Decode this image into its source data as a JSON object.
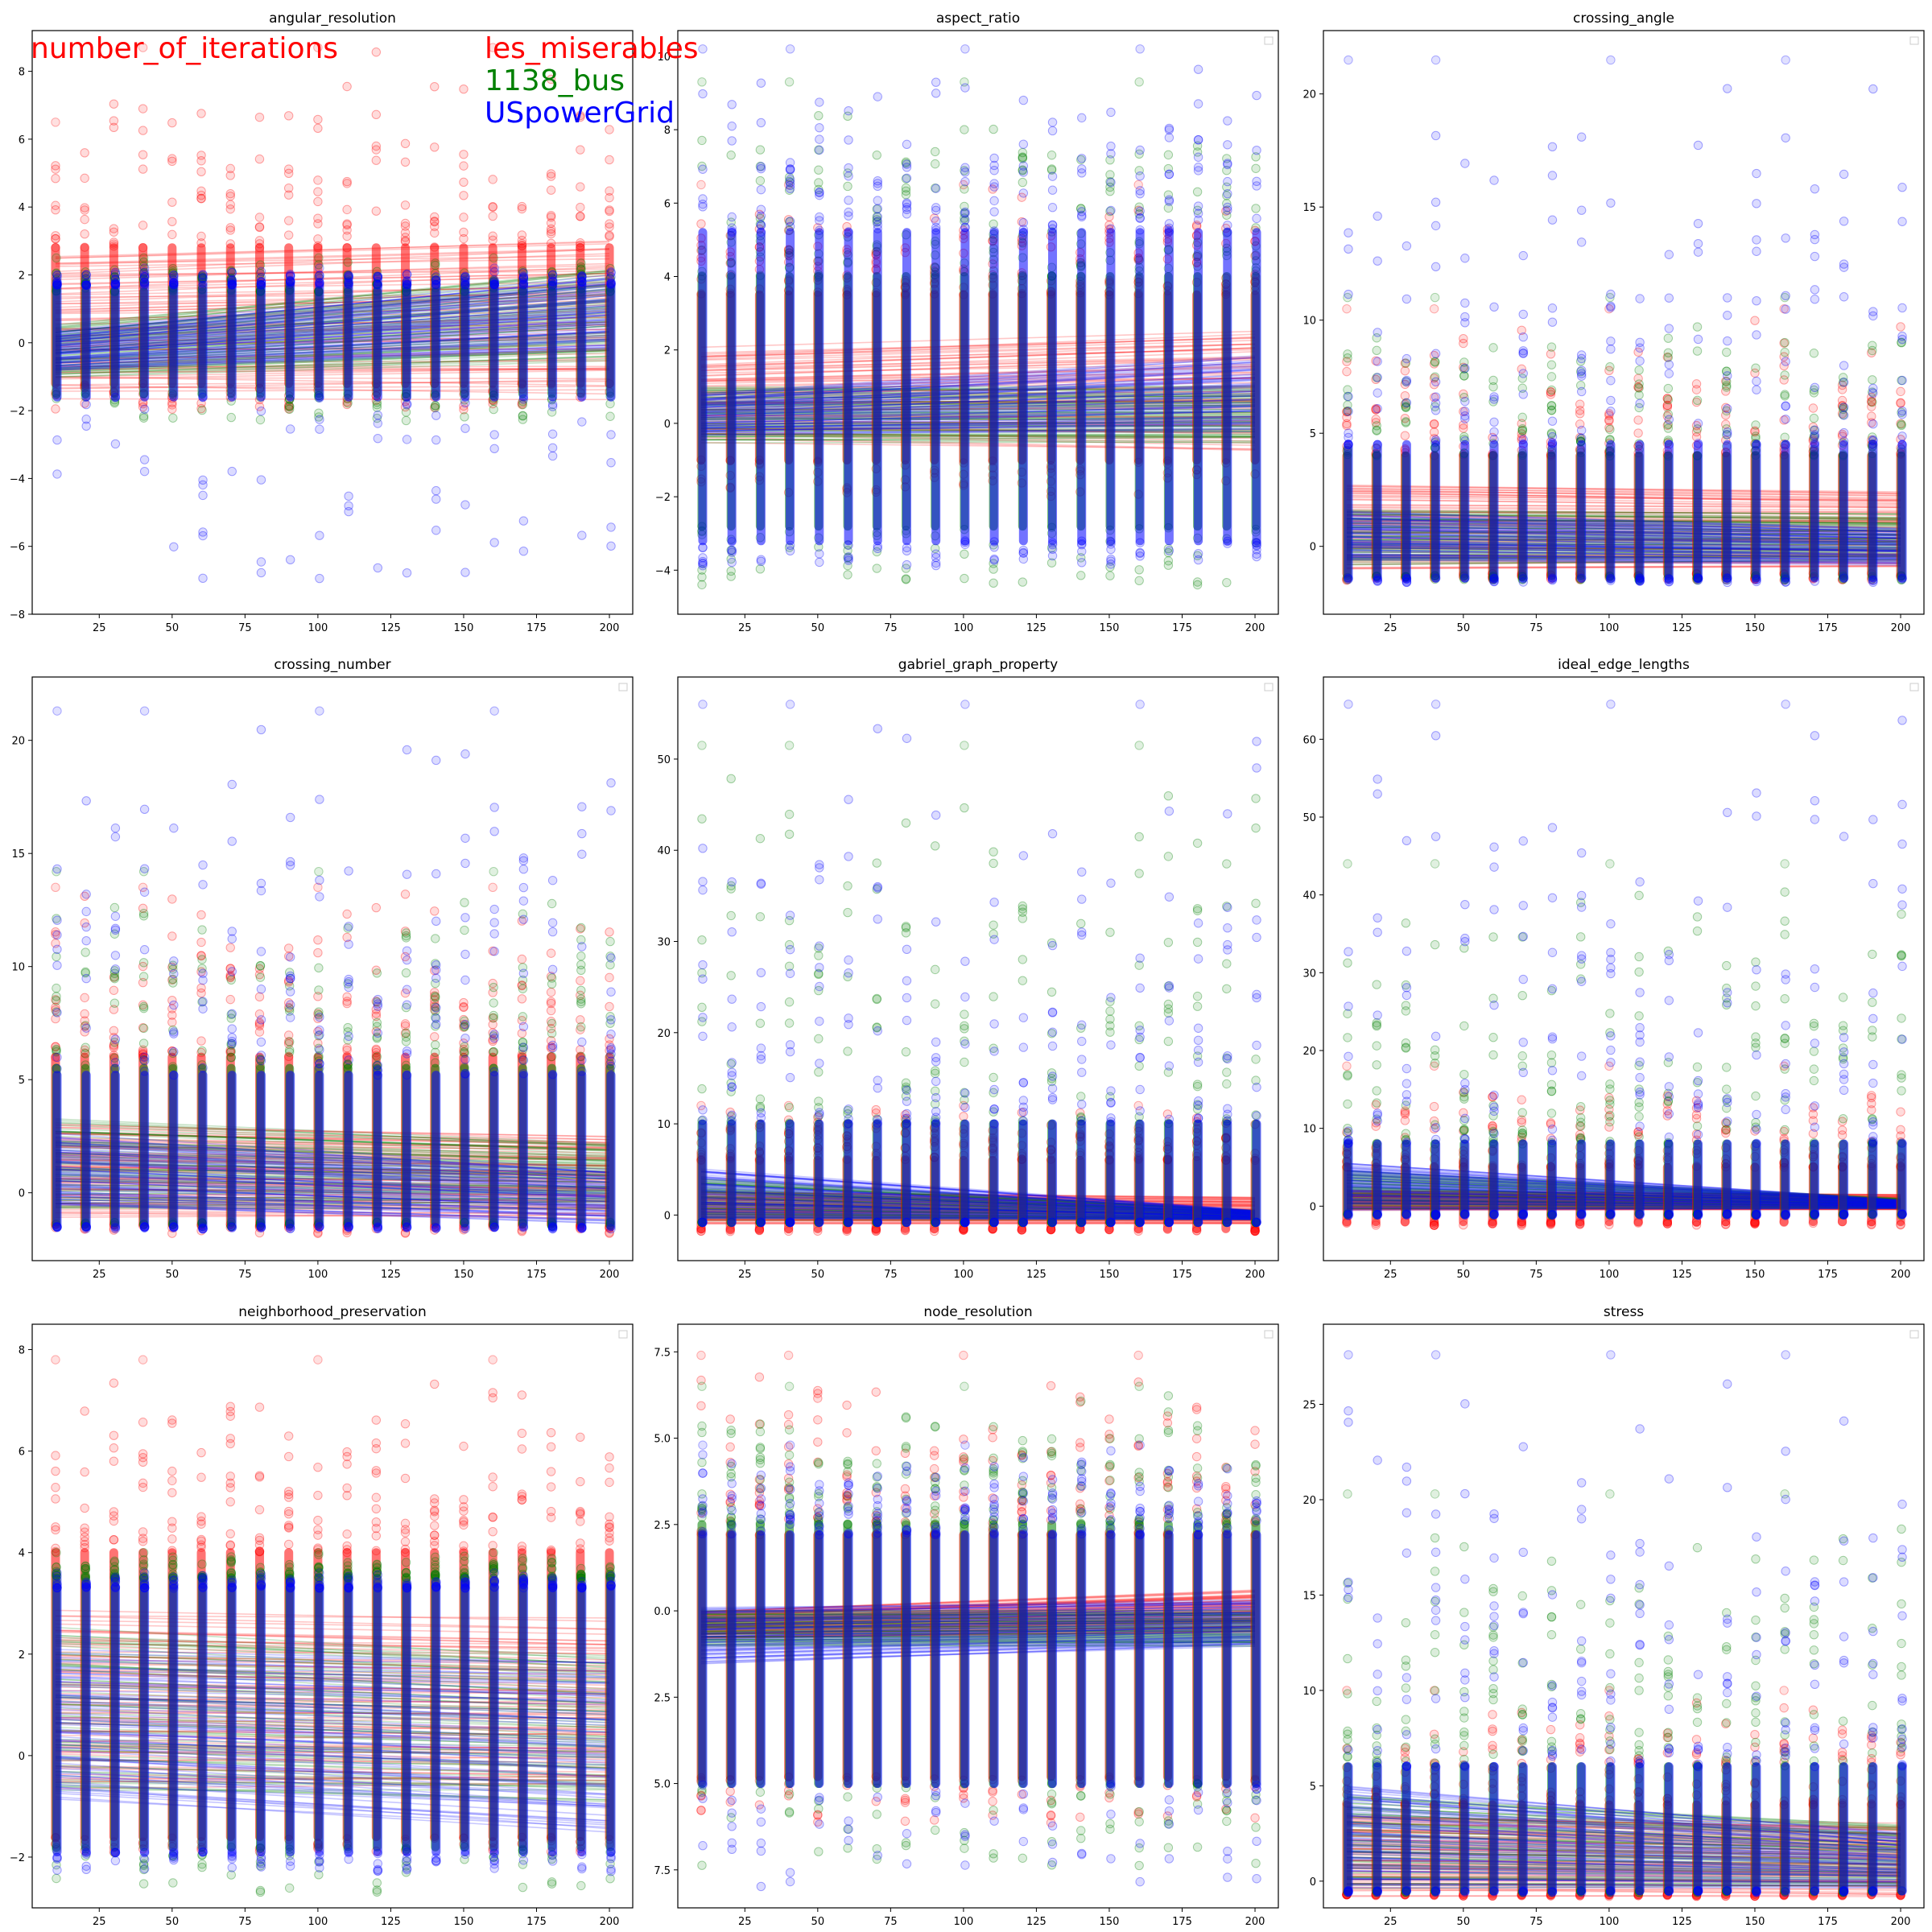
{
  "overlay": {
    "metric": "number_of_iterations",
    "datasets": [
      "les_miserables",
      "1138_bus",
      "USpowerGrid"
    ]
  },
  "colors": {
    "les_miserables": "#ff0000",
    "1138_bus": "#008000",
    "USpowerGrid": "#0000ff",
    "axis": "#000000",
    "background": "#ffffff"
  },
  "chart_data": [
    {
      "type": "scatter",
      "title": "angular_resolution",
      "legend": "none",
      "x": [
        10,
        20,
        30,
        40,
        50,
        60,
        70,
        80,
        90,
        100,
        110,
        120,
        130,
        140,
        150,
        160,
        170,
        180,
        190,
        200
      ],
      "xticks": [
        25,
        50,
        75,
        100,
        125,
        150,
        175,
        200
      ],
      "xlim": [
        2,
        208
      ],
      "yticks": [
        -8,
        -6,
        -4,
        -2,
        0,
        2,
        4,
        6,
        8
      ],
      "ylim": [
        -8,
        9.2
      ],
      "series": [
        {
          "name": "les_miserables",
          "band": [
            -1.2,
            2.8
          ],
          "max_at_x10": 6.5,
          "max": 8.7,
          "min": -2.0,
          "fit_start": [
            -1.5,
            2.5
          ],
          "fit_end": [
            -1.5,
            3.0
          ]
        },
        {
          "name": "1138_bus",
          "band": [
            -1.5,
            1.5
          ],
          "max_at_x10": 2.5,
          "max": 2.5,
          "min": -2.3,
          "fit_start": [
            -1.0,
            0.5
          ],
          "fit_end": [
            -0.5,
            2.2
          ]
        },
        {
          "name": "USpowerGrid",
          "band": [
            -1.6,
            1.7
          ],
          "max_at_x10": 2.0,
          "max": 2.2,
          "min": -7.2,
          "min_at_x10": -7.2,
          "fit_start": [
            -0.8,
            0.3
          ],
          "fit_end": [
            -0.2,
            2.0
          ]
        }
      ]
    },
    {
      "type": "scatter",
      "title": "aspect_ratio",
      "legend": "empty-top-right",
      "x": [
        10,
        20,
        30,
        40,
        50,
        60,
        70,
        80,
        90,
        100,
        110,
        120,
        130,
        140,
        150,
        160,
        170,
        180,
        190,
        200
      ],
      "xticks": [
        25,
        50,
        75,
        100,
        125,
        150,
        175,
        200
      ],
      "xlim": [
        2,
        208
      ],
      "yticks": [
        -4,
        -2,
        0,
        2,
        4,
        6,
        8,
        10
      ],
      "ylim": [
        -5.2,
        10.7
      ],
      "series": [
        {
          "name": "les_miserables",
          "band": [
            -1.0,
            3.5
          ],
          "max": 6.5,
          "min": -2.0,
          "fit_start": [
            -0.5,
            2.0
          ],
          "fit_end": [
            -0.7,
            2.5
          ]
        },
        {
          "name": "1138_bus",
          "band": [
            -2.8,
            4.0
          ],
          "max": 9.3,
          "min": -4.4,
          "fit_start": [
            -0.5,
            1.0
          ],
          "fit_end": [
            -0.5,
            1.0
          ]
        },
        {
          "name": "USpowerGrid",
          "band": [
            -3.2,
            5.2
          ],
          "max": 10.2,
          "min": -3.9,
          "fit_start": [
            -0.3,
            0.8
          ],
          "fit_end": [
            -0.2,
            1.8
          ]
        }
      ]
    },
    {
      "type": "scatter",
      "title": "crossing_angle",
      "legend": "empty-top-right",
      "x": [
        10,
        20,
        30,
        40,
        50,
        60,
        70,
        80,
        90,
        100,
        110,
        120,
        130,
        140,
        150,
        160,
        170,
        180,
        190,
        200
      ],
      "xticks": [
        25,
        50,
        75,
        100,
        125,
        150,
        175,
        200
      ],
      "xlim": [
        2,
        208
      ],
      "yticks": [
        0,
        5,
        10,
        15,
        20
      ],
      "ylim": [
        -3.0,
        22.8
      ],
      "series": [
        {
          "name": "les_miserables",
          "band": [
            -1.2,
            4.0
          ],
          "max": 10.5,
          "min": -1.5,
          "fit_start": [
            -1.0,
            2.8
          ],
          "fit_end": [
            -1.0,
            2.5
          ]
        },
        {
          "name": "1138_bus",
          "band": [
            -1.3,
            4.0
          ],
          "max": 11.0,
          "min": -1.5,
          "fit_start": [
            -0.8,
            1.6
          ],
          "fit_end": [
            -0.6,
            1.4
          ]
        },
        {
          "name": "USpowerGrid",
          "band": [
            -1.4,
            4.5
          ],
          "max": 21.5,
          "max_at_x10": 21.5,
          "min": -1.6,
          "fit_start": [
            -0.6,
            1.5
          ],
          "fit_end": [
            -0.8,
            0.8
          ]
        }
      ]
    },
    {
      "type": "scatter",
      "title": "crossing_number",
      "legend": "empty-top-right",
      "x": [
        10,
        20,
        30,
        40,
        50,
        60,
        70,
        80,
        90,
        100,
        110,
        120,
        130,
        140,
        150,
        160,
        170,
        180,
        190,
        200
      ],
      "xticks": [
        25,
        50,
        75,
        100,
        125,
        150,
        175,
        200
      ],
      "xlim": [
        2,
        208
      ],
      "yticks": [
        0,
        5,
        10,
        15,
        20
      ],
      "ylim": [
        -3.0,
        22.8
      ],
      "series": [
        {
          "name": "les_miserables",
          "band": [
            -1.4,
            6.0
          ],
          "max": 13.5,
          "min": -1.8,
          "fit_start": [
            -1.0,
            3.0
          ],
          "fit_end": [
            -1.0,
            2.5
          ]
        },
        {
          "name": "1138_bus",
          "band": [
            -1.3,
            5.5
          ],
          "max": 14.2,
          "min": -1.5,
          "fit_start": [
            -0.8,
            3.2
          ],
          "fit_end": [
            -0.6,
            2.2
          ]
        },
        {
          "name": "USpowerGrid",
          "band": [
            -1.5,
            5.2
          ],
          "max": 21.3,
          "max_at_x10": 21.3,
          "min": -1.6,
          "fit_start": [
            -0.6,
            2.5
          ],
          "fit_end": [
            -1.3,
            1.0
          ]
        }
      ]
    },
    {
      "type": "scatter",
      "title": "gabriel_graph_property",
      "legend": "empty-top-right",
      "x": [
        10,
        20,
        30,
        40,
        50,
        60,
        70,
        80,
        90,
        100,
        110,
        120,
        130,
        140,
        150,
        160,
        170,
        180,
        190,
        200
      ],
      "xticks": [
        25,
        50,
        75,
        100,
        125,
        150,
        175,
        200
      ],
      "xlim": [
        2,
        208
      ],
      "yticks": [
        0,
        10,
        20,
        30,
        40,
        50
      ],
      "ylim": [
        -5.0,
        59.0
      ],
      "series": [
        {
          "name": "les_miserables",
          "band": [
            -1.5,
            6.0
          ],
          "max": 12.0,
          "min": -1.8,
          "fit_start": [
            -1.0,
            2.5
          ],
          "fit_end": [
            -1.0,
            2.0
          ]
        },
        {
          "name": "1138_bus",
          "band": [
            -0.8,
            10.0
          ],
          "max": 51.5,
          "max_at_x10": 51.5,
          "min": -0.8,
          "fit_start": [
            -0.5,
            4.0
          ],
          "fit_end": [
            -0.5,
            0.5
          ]
        },
        {
          "name": "USpowerGrid",
          "band": [
            -0.8,
            10.0
          ],
          "max": 56.0,
          "max_at_x10": 56.0,
          "min": -0.8,
          "fit_start": [
            -0.5,
            5.0
          ],
          "fit_end": [
            -0.5,
            0.5
          ]
        }
      ]
    },
    {
      "type": "scatter",
      "title": "ideal_edge_lengths",
      "legend": "empty-top-right",
      "x": [
        10,
        20,
        30,
        40,
        50,
        60,
        70,
        80,
        90,
        100,
        110,
        120,
        130,
        140,
        150,
        160,
        170,
        180,
        190,
        200
      ],
      "xticks": [
        25,
        50,
        75,
        100,
        125,
        150,
        175,
        200
      ],
      "xlim": [
        2,
        208
      ],
      "yticks": [
        0,
        10,
        20,
        30,
        40,
        50,
        60
      ],
      "ylim": [
        -7.0,
        68.0
      ],
      "series": [
        {
          "name": "les_miserables",
          "band": [
            -2.0,
            5.0
          ],
          "max": 18.0,
          "min": -2.5,
          "fit_start": [
            -0.5,
            2.0
          ],
          "fit_end": [
            -0.5,
            1.5
          ]
        },
        {
          "name": "1138_bus",
          "band": [
            -1.0,
            8.0
          ],
          "max": 44.0,
          "max_at_x10": 44.0,
          "min": -1.2,
          "fit_start": [
            -0.3,
            4.5
          ],
          "fit_end": [
            -0.3,
            1.0
          ]
        },
        {
          "name": "USpowerGrid",
          "band": [
            -1.0,
            8.0
          ],
          "max": 64.5,
          "max_at_x10": 64.5,
          "min": -1.2,
          "fit_start": [
            -0.3,
            5.5
          ],
          "fit_end": [
            -0.3,
            0.8
          ]
        }
      ]
    },
    {
      "type": "scatter",
      "title": "neighborhood_preservation",
      "legend": "empty-top-right",
      "x": [
        10,
        20,
        30,
        40,
        50,
        60,
        70,
        80,
        90,
        100,
        110,
        120,
        130,
        140,
        150,
        160,
        170,
        180,
        190,
        200
      ],
      "xticks": [
        25,
        50,
        75,
        100,
        125,
        150,
        175,
        200
      ],
      "xlim": [
        2,
        208
      ],
      "yticks": [
        -2,
        0,
        2,
        4,
        6,
        8
      ],
      "ylim": [
        -3.0,
        8.5
      ],
      "series": [
        {
          "name": "les_miserables",
          "band": [
            -1.6,
            4.0
          ],
          "max": 7.8,
          "min": -1.9,
          "fit_start": [
            -0.6,
            2.8
          ],
          "fit_end": [
            -0.6,
            2.6
          ]
        },
        {
          "name": "1138_bus",
          "band": [
            -1.8,
            3.5
          ],
          "max": 4.0,
          "min": -2.7,
          "fit_start": [
            -0.7,
            2.5
          ],
          "fit_end": [
            -0.9,
            2.0
          ]
        },
        {
          "name": "USpowerGrid",
          "band": [
            -1.9,
            3.3
          ],
          "max": 3.6,
          "min": -2.3,
          "fit_start": [
            -0.8,
            2.0
          ],
          "fit_end": [
            -1.5,
            1.8
          ]
        }
      ]
    },
    {
      "type": "scatter",
      "title": "node_resolution",
      "legend": "empty-top-right",
      "x": [
        10,
        20,
        30,
        40,
        50,
        60,
        70,
        80,
        90,
        100,
        110,
        120,
        130,
        140,
        150,
        160,
        170,
        180,
        190,
        200
      ],
      "xticks": [
        25,
        50,
        75,
        100,
        125,
        150,
        175,
        200
      ],
      "xlim": [
        2,
        208
      ],
      "yticks": [
        -7.5,
        -5.0,
        -2.5,
        0.0,
        2.5,
        5.0,
        7.5
      ],
      "yticklabels": [
        "7.5",
        "5.0",
        "2.5",
        "0.0",
        "2.5",
        "5.0",
        "7.5"
      ],
      "ylim": [
        -8.6,
        8.3
      ],
      "series": [
        {
          "name": "les_miserables",
          "band": [
            -4.8,
            2.2
          ],
          "max": 7.4,
          "min": -6.2,
          "fit_start": [
            -0.8,
            0.0
          ],
          "fit_end": [
            -0.6,
            0.6
          ]
        },
        {
          "name": "1138_bus",
          "band": [
            -5.0,
            2.5
          ],
          "max": 6.5,
          "min": -7.4,
          "fit_start": [
            -1.0,
            0.0
          ],
          "fit_end": [
            -1.0,
            0.0
          ]
        },
        {
          "name": "USpowerGrid",
          "band": [
            -5.0,
            2.2
          ],
          "max": 4.8,
          "min": -8.0,
          "fit_start": [
            -1.5,
            0.1
          ],
          "fit_end": [
            -1.0,
            0.3
          ]
        }
      ]
    },
    {
      "type": "scatter",
      "title": "stress",
      "legend": "empty-top-right",
      "x": [
        10,
        20,
        30,
        40,
        50,
        60,
        70,
        80,
        90,
        100,
        110,
        120,
        130,
        140,
        150,
        160,
        170,
        180,
        190,
        200
      ],
      "xticks": [
        25,
        50,
        75,
        100,
        125,
        150,
        175,
        200
      ],
      "xlim": [
        2,
        208
      ],
      "yticks": [
        0,
        5,
        10,
        15,
        20,
        25
      ],
      "ylim": [
        -1.4,
        29.2
      ],
      "series": [
        {
          "name": "les_miserables",
          "band": [
            -0.7,
            4.0
          ],
          "max": 10.0,
          "min": -0.8,
          "fit_start": [
            -0.7,
            3.5
          ],
          "fit_end": [
            -0.7,
            3.0
          ]
        },
        {
          "name": "1138_bus",
          "band": [
            -0.5,
            6.0
          ],
          "max": 20.3,
          "min": -0.6,
          "fit_start": [
            -0.3,
            4.5
          ],
          "fit_end": [
            -0.3,
            3.0
          ]
        },
        {
          "name": "USpowerGrid",
          "band": [
            -0.5,
            6.0
          ],
          "max": 27.6,
          "min": -0.6,
          "fit_start": [
            -0.3,
            5.0
          ],
          "fit_end": [
            -0.3,
            2.5
          ]
        }
      ]
    }
  ]
}
